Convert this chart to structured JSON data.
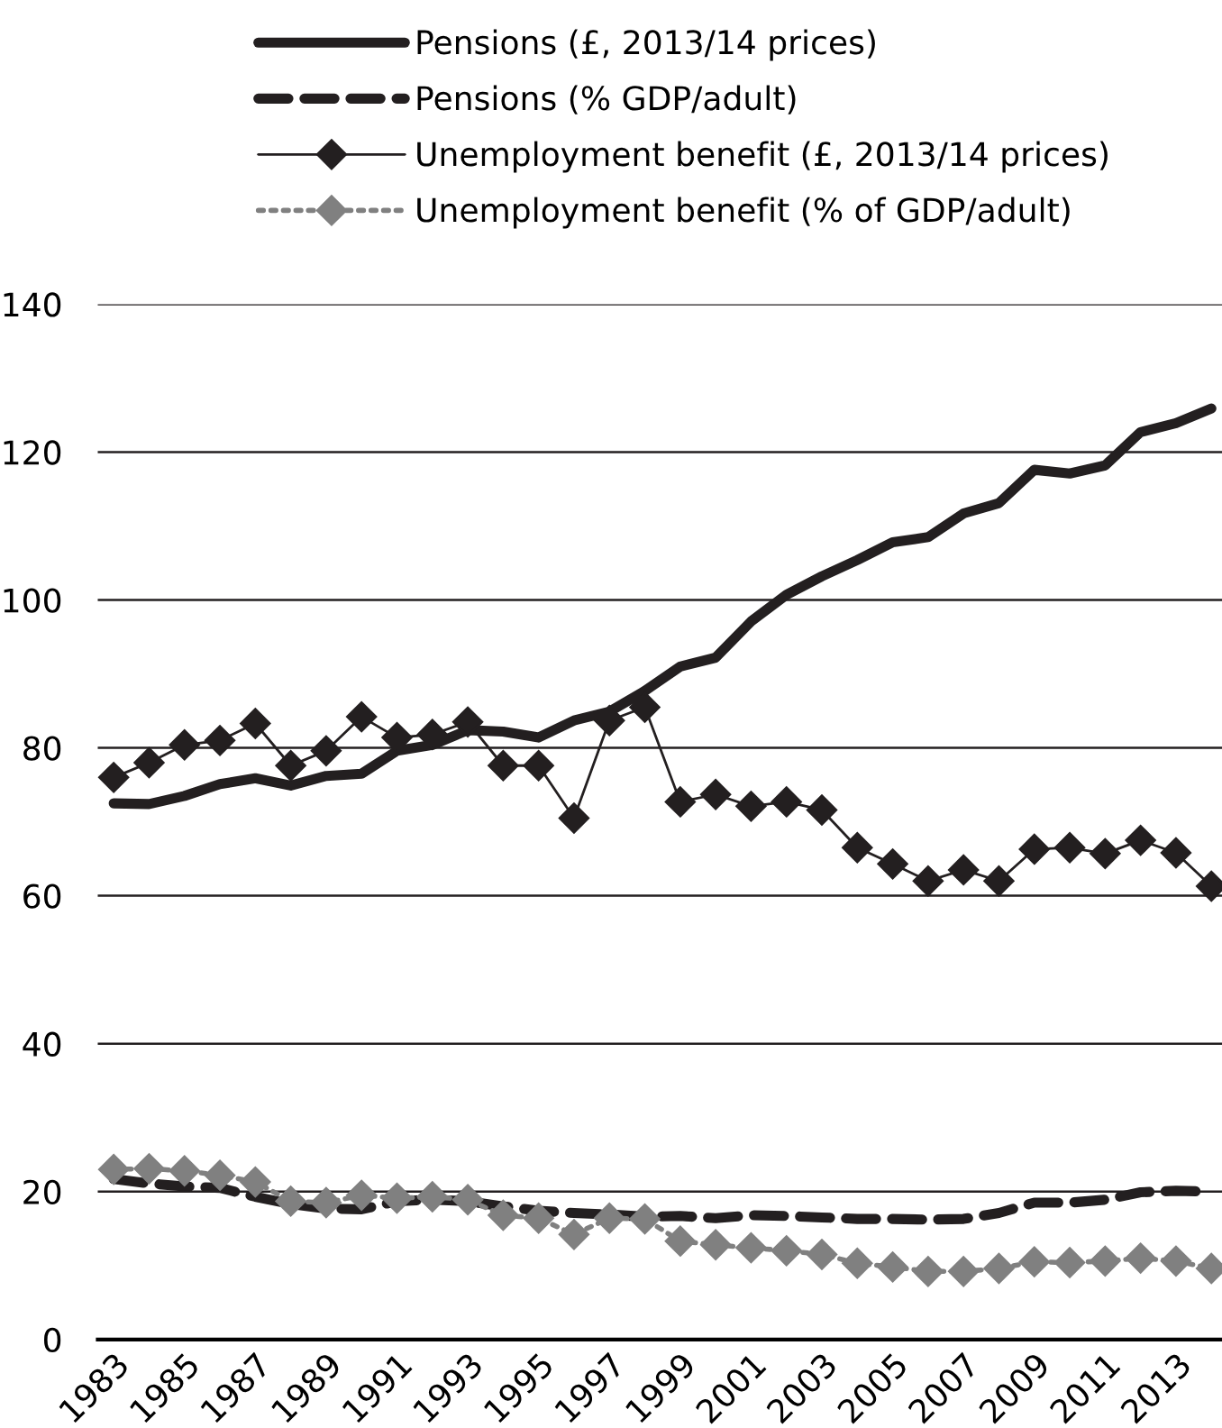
{
  "chart_data": {
    "type": "line",
    "categories": [
      "1983",
      null,
      "1985",
      null,
      "1987",
      null,
      "1989",
      null,
      "1991",
      null,
      "1993",
      null,
      "1995",
      null,
      "1997",
      null,
      "1999",
      null,
      "2001",
      null,
      "2003",
      null,
      "2005",
      null,
      "2007",
      null,
      "2009",
      null,
      "2011",
      null,
      "2013",
      null
    ],
    "series": [
      {
        "name": "Pensions (£, 2013/14 prices)",
        "color": "#231f20",
        "line_style": "solid",
        "marker": "none",
        "values": [
          72.5,
          72.4,
          73.5,
          75.1,
          75.9,
          74.9,
          76.2,
          76.5,
          79.6,
          80.4,
          82.4,
          82.2,
          81.4,
          83.7,
          84.9,
          87.7,
          91.0,
          92.2,
          97.1,
          100.7,
          103.2,
          105.4,
          107.8,
          108.5,
          111.7,
          113.1,
          117.6,
          117.1,
          118.2,
          122.7,
          123.9,
          125.9
        ]
      },
      {
        "name": "Pensions (% GDP/adult)",
        "color": "#231f20",
        "line_style": "dashed",
        "marker": "none",
        "values": [
          21.7,
          21.1,
          20.7,
          20.5,
          19.3,
          18.3,
          17.7,
          17.6,
          18.7,
          18.9,
          18.7,
          18.0,
          17.4,
          17.1,
          16.9,
          16.6,
          16.7,
          16.4,
          16.8,
          16.7,
          16.5,
          16.3,
          16.3,
          16.2,
          16.3,
          17.1,
          18.5,
          18.5,
          18.9,
          19.9,
          20.1,
          20.0
        ]
      },
      {
        "name": "Unemployment benefit (£, 2013/14 prices)",
        "color": "#231f20",
        "line_style": "solid",
        "marker": "diamond",
        "values": [
          76.0,
          78.0,
          80.4,
          81.0,
          83.3,
          77.6,
          79.6,
          84.2,
          81.4,
          81.8,
          83.5,
          77.6,
          77.6,
          70.5,
          83.7,
          85.5,
          72.7,
          73.7,
          72.1,
          72.7,
          71.6,
          66.5,
          64.3,
          62.0,
          63.5,
          62.0,
          66.3,
          66.5,
          65.7,
          67.5,
          65.8,
          61.3
        ]
      },
      {
        "name": "Unemployment benefit (% of GDP/adult)",
        "color": "#808080",
        "line_style": "dotted",
        "marker": "diamond",
        "values": [
          23.0,
          23.1,
          22.8,
          22.2,
          21.3,
          18.7,
          18.5,
          19.5,
          19.1,
          19.3,
          18.9,
          16.8,
          16.4,
          14.2,
          16.4,
          16.3,
          13.3,
          12.8,
          12.4,
          12.0,
          11.5,
          10.3,
          9.8,
          9.2,
          9.2,
          9.6,
          10.5,
          10.4,
          10.6,
          11.0,
          10.6,
          9.6
        ]
      }
    ],
    "ylim": [
      0,
      140
    ],
    "yticks": [
      0,
      20,
      40,
      60,
      80,
      100,
      120,
      140
    ],
    "grid": "y",
    "legend": "top"
  }
}
